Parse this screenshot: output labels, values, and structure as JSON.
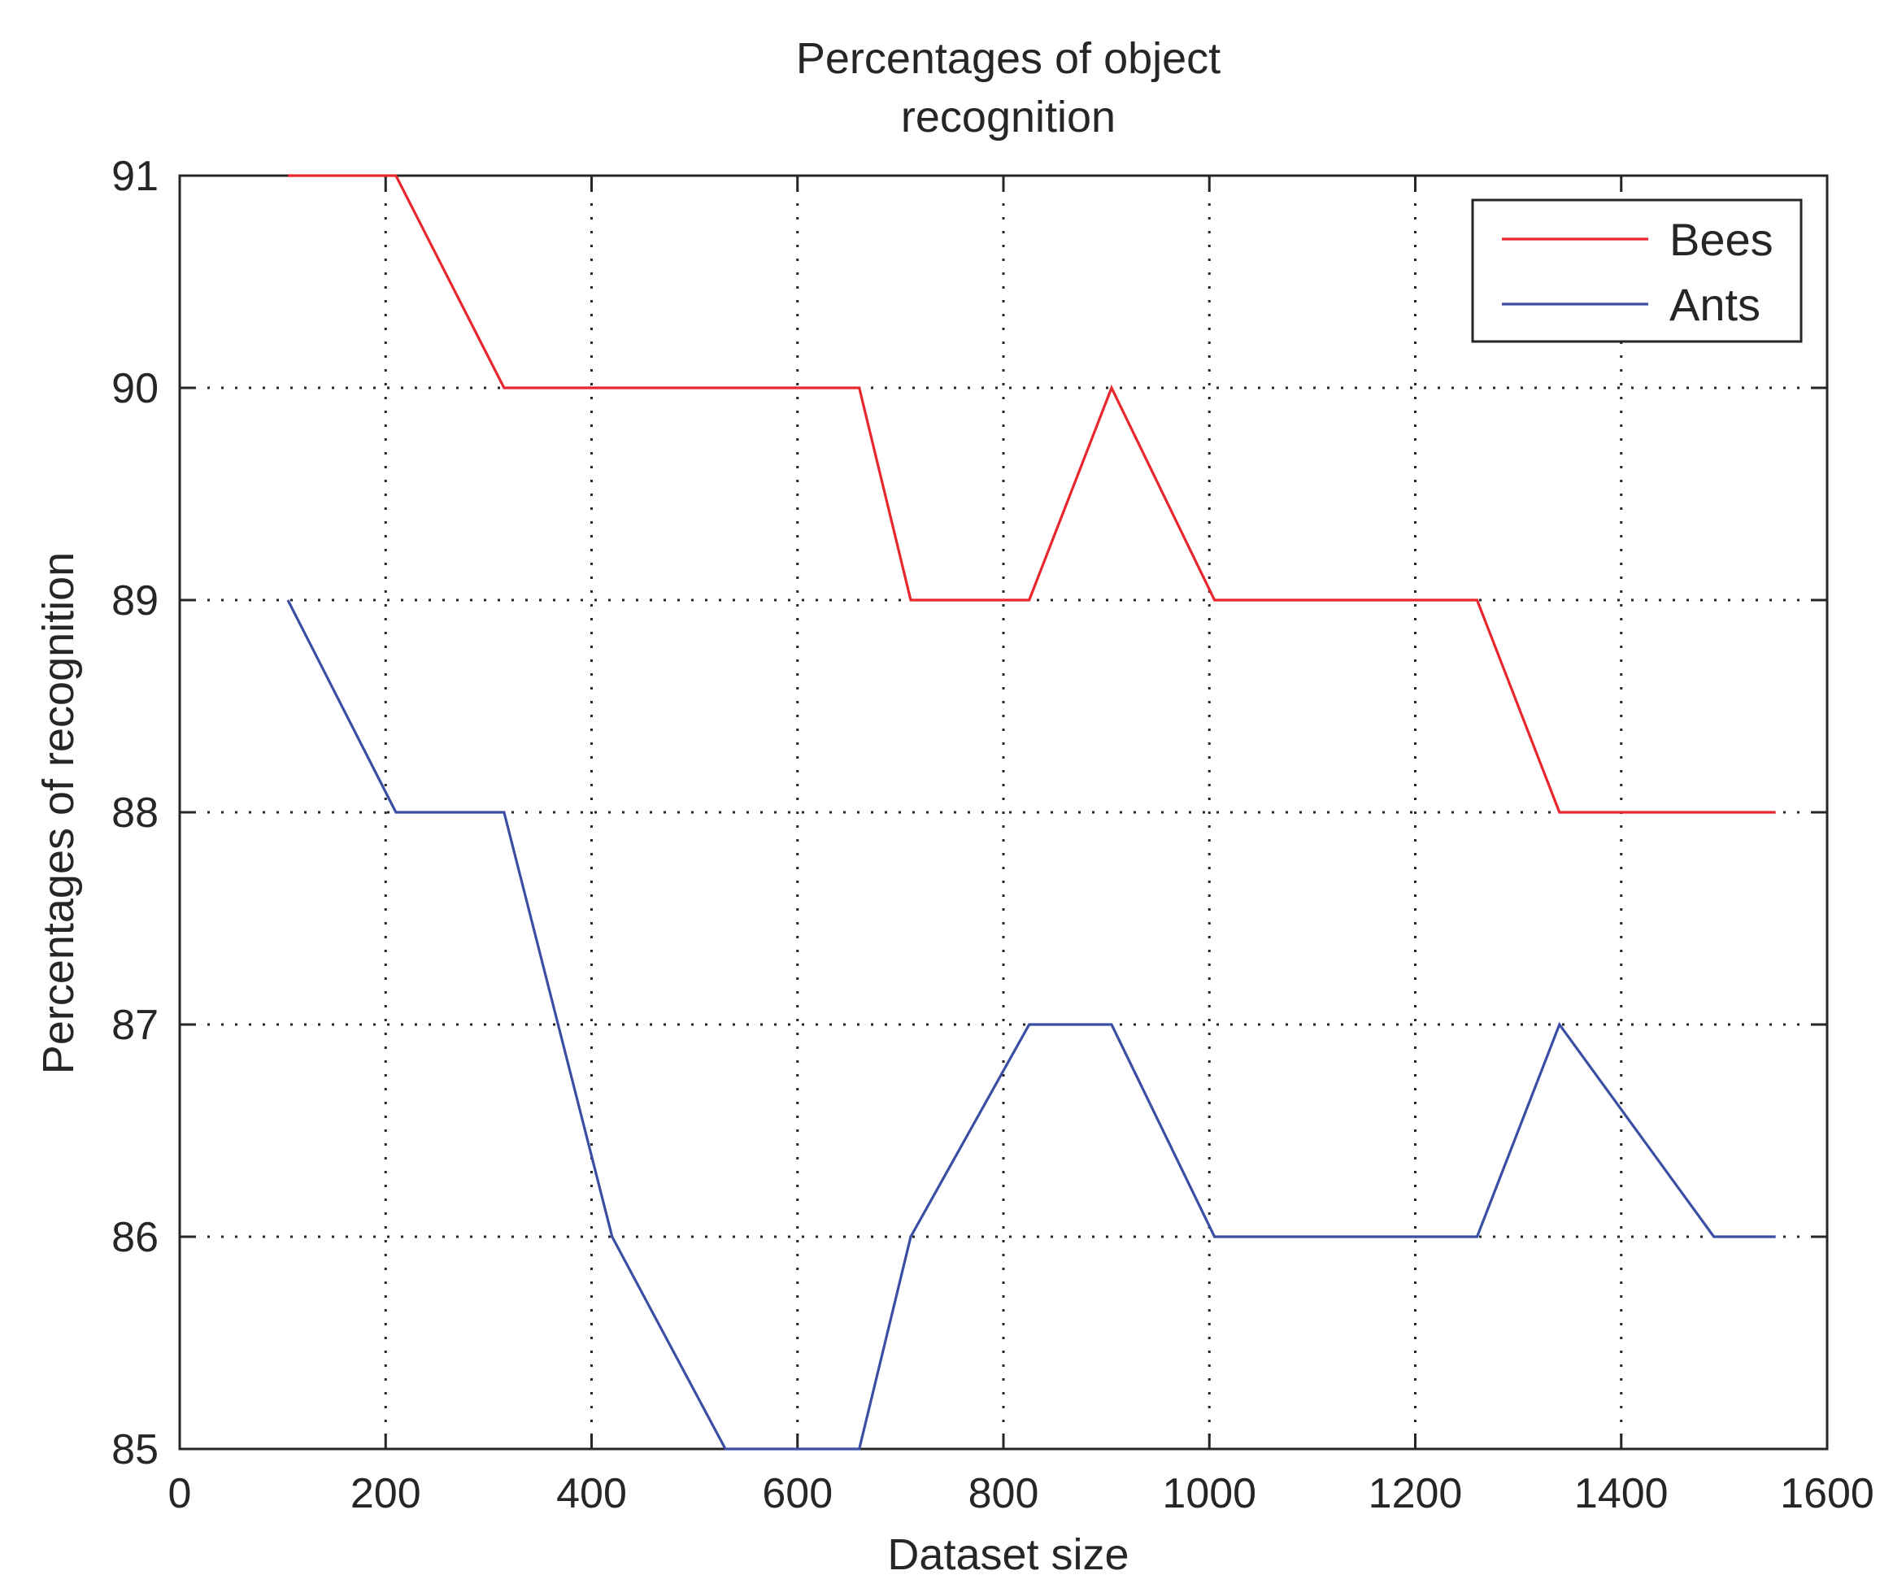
{
  "chart_data": {
    "type": "line",
    "title": [
      "Percentages of object",
      "recognition"
    ],
    "xlabel": "Dataset size",
    "ylabel": "Percentages of recognition",
    "xlim": [
      0,
      1600
    ],
    "ylim": [
      85,
      91
    ],
    "xticks": [
      0,
      200,
      400,
      600,
      800,
      1000,
      1200,
      1400,
      1600
    ],
    "yticks": [
      85,
      86,
      87,
      88,
      89,
      90,
      91
    ],
    "grid": true,
    "legend_position": "top-right",
    "series": [
      {
        "name": "Bees",
        "color": "#e8262d",
        "x": [
          105,
          210,
          315,
          420,
          530,
          660,
          710,
          825,
          905,
          1005,
          1110,
          1260,
          1340,
          1490,
          1550
        ],
        "y": [
          91,
          91,
          90,
          90,
          90,
          90,
          89,
          89,
          90,
          89,
          89,
          89,
          88,
          88,
          88
        ]
      },
      {
        "name": "Ants",
        "color": "#3b4ea3",
        "x": [
          105,
          210,
          315,
          420,
          530,
          660,
          710,
          825,
          905,
          1005,
          1110,
          1260,
          1340,
          1490,
          1550
        ],
        "y": [
          89,
          88,
          88,
          86,
          85,
          85,
          86,
          87,
          87,
          86,
          86,
          86,
          87,
          86,
          86
        ]
      }
    ]
  }
}
